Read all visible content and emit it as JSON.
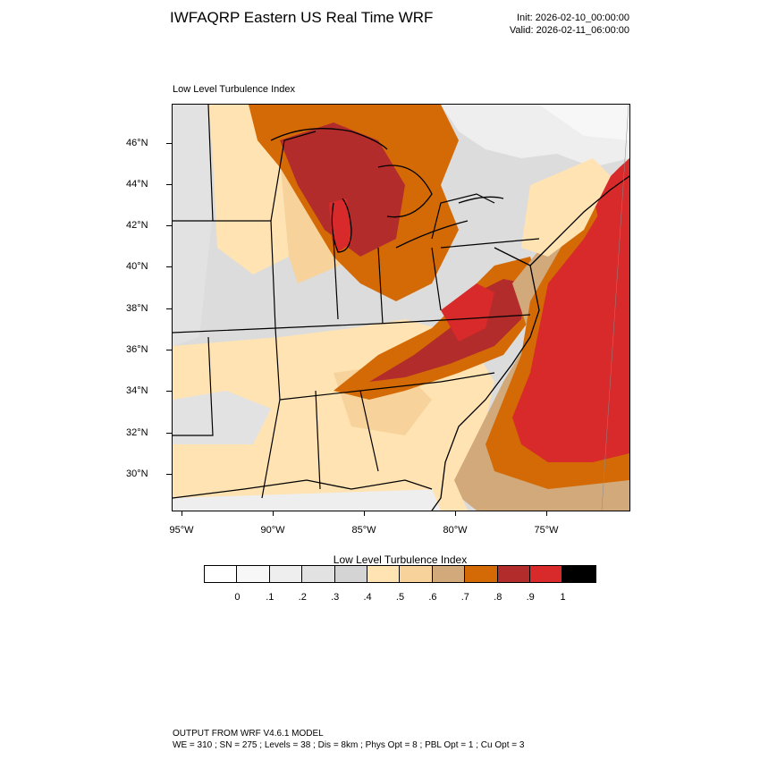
{
  "header": {
    "title": "IWFAQRP Eastern US Real Time WRF",
    "init": "Init: 2026-02-10_00:00:00",
    "valid": "Valid: 2026-02-11_06:00:00"
  },
  "subtitle": "Low Level Turbulence Index",
  "axes": {
    "lat_labels": [
      "46°N",
      "44°N",
      "42°N",
      "40°N",
      "38°N",
      "36°N",
      "34°N",
      "32°N",
      "30°N"
    ],
    "lon_labels": [
      "95°W",
      "90°W",
      "85°W",
      "80°W",
      "75°W"
    ]
  },
  "colorbar": {
    "title": "Low Level Turbulence Index",
    "labels": [
      "0",
      ".1",
      ".2",
      ".3",
      ".4",
      ".5",
      ".6",
      ".7",
      ".8",
      ".9",
      "1"
    ],
    "colors": [
      "#ffffff",
      "#f7f7f7",
      "#eeeeee",
      "#e2e2e2",
      "#d4d4d4",
      "#ffe3b3",
      "#f7d29b",
      "#d1a97a",
      "#d46a06",
      "#b32c2c",
      "#d8292b",
      "#000000"
    ]
  },
  "chart_data": {
    "type": "heatmap",
    "title": "IWFAQRP Eastern US Real Time WRF",
    "field": "Low Level Turbulence Index",
    "x_range": [
      -95.5,
      -71.5
    ],
    "y_range": [
      28.3,
      47.8
    ],
    "levels": [
      0,
      0.1,
      0.2,
      0.3,
      0.4,
      0.5,
      0.6,
      0.7,
      0.8,
      0.9,
      1
    ]
  },
  "footer": {
    "line1": "OUTPUT FROM WRF V4.6.1 MODEL",
    "line2": "WE = 310 ; SN = 275 ; Levels = 38 ; Dis = 8km ; Phys Opt = 8 ; PBL Opt = 1 ; Cu Opt = 3"
  }
}
